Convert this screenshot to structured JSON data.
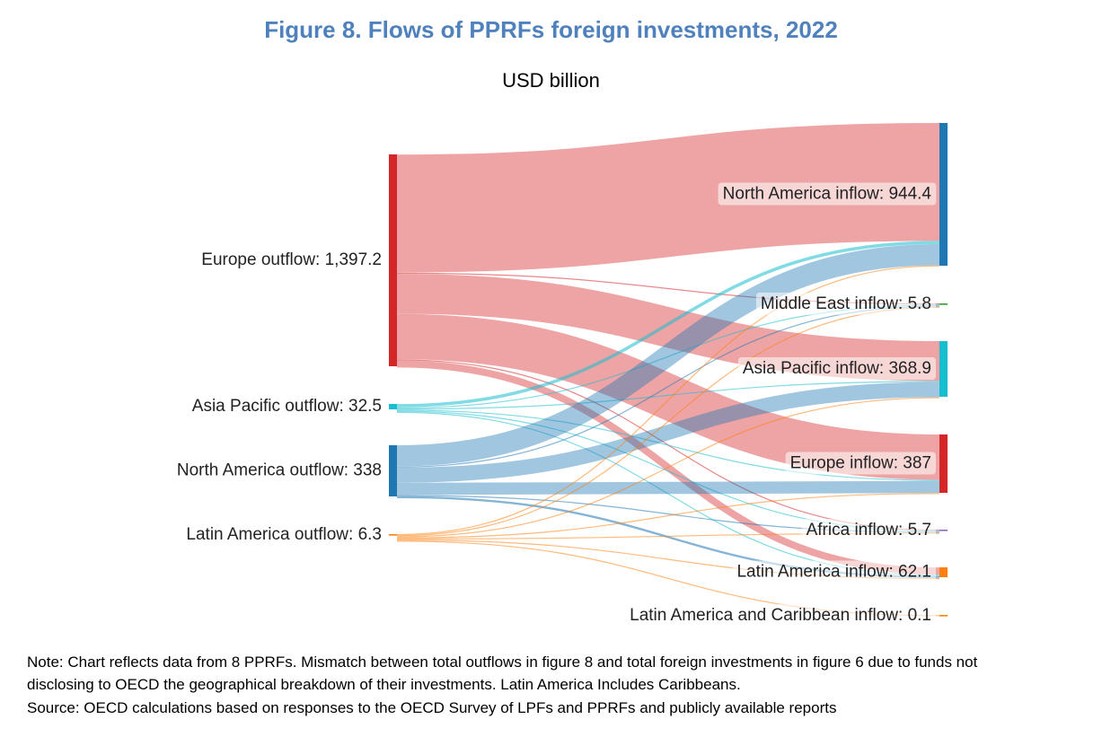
{
  "title": "Figure 8. Flows of PPRFs foreign investments, 2022",
  "subtitle": "USD billion",
  "note_line1": "Note: Chart reflects data from 8 PPRFs. Mismatch between total outflows in figure 8 and total foreign investments in figure 6 due to funds not",
  "note_line2": "disclosing to OECD the geographical breakdown of their investments. Latin America Includes Caribbeans.",
  "source": "Source: OECD calculations based on responses to the OECD Survey of LPFs and PPRFs and publicly available reports",
  "chart_data": {
    "type": "sankey",
    "unit": "USD billion",
    "sources": [
      {
        "id": "EU_out",
        "label": "Europe outflow: 1,397.2",
        "value": 1397.2,
        "color": "#d62728"
      },
      {
        "id": "AP_out",
        "label": "Asia Pacific outflow: 32.5",
        "value": 32.5,
        "color": "#17becf"
      },
      {
        "id": "NA_out",
        "label": "North America outflow: 338",
        "value": 338,
        "color": "#1f77b4"
      },
      {
        "id": "LA_out",
        "label": "Latin America outflow: 6.3",
        "value": 6.3,
        "color": "#ff7f0e"
      }
    ],
    "targets": [
      {
        "id": "NA_in",
        "label": "North America inflow: 944.4",
        "value": 944.4,
        "color": "#1f77b4"
      },
      {
        "id": "ME_in",
        "label": "Middle East inflow: 5.8",
        "value": 5.8,
        "color": "#2ca02c"
      },
      {
        "id": "AP_in",
        "label": "Asia Pacific inflow: 368.9",
        "value": 368.9,
        "color": "#17becf"
      },
      {
        "id": "EU_in",
        "label": "Europe inflow: 387",
        "value": 387,
        "color": "#d62728"
      },
      {
        "id": "AF_in",
        "label": "Africa inflow: 5.7",
        "value": 5.7,
        "color": "#9467bd"
      },
      {
        "id": "LA_in",
        "label": "Latin America inflow: 62.1",
        "value": 62.1,
        "color": "#ff7f0e"
      },
      {
        "id": "LAC_in",
        "label": "Latin America and Caribbean inflow: 0.1",
        "value": 0.1,
        "color": "#ff7f0e"
      }
    ],
    "links": [
      {
        "source": "EU_out",
        "target": "NA_in",
        "value": 780
      },
      {
        "source": "EU_out",
        "target": "ME_in",
        "value": 3
      },
      {
        "source": "EU_out",
        "target": "AP_in",
        "value": 264
      },
      {
        "source": "EU_out",
        "target": "EU_in",
        "value": 300
      },
      {
        "source": "EU_out",
        "target": "AF_in",
        "value": 3
      },
      {
        "source": "EU_out",
        "target": "LA_in",
        "value": 47
      },
      {
        "source": "AP_out",
        "target": "NA_in",
        "value": 21
      },
      {
        "source": "AP_out",
        "target": "ME_in",
        "value": 1.5
      },
      {
        "source": "AP_out",
        "target": "AP_in",
        "value": 3
      },
      {
        "source": "AP_out",
        "target": "EU_in",
        "value": 5
      },
      {
        "source": "AP_out",
        "target": "AF_in",
        "value": 1
      },
      {
        "source": "AP_out",
        "target": "LA_in",
        "value": 1
      },
      {
        "source": "NA_out",
        "target": "NA_in",
        "value": 140
      },
      {
        "source": "NA_out",
        "target": "ME_in",
        "value": 1
      },
      {
        "source": "NA_out",
        "target": "AP_in",
        "value": 100
      },
      {
        "source": "NA_out",
        "target": "EU_in",
        "value": 80
      },
      {
        "source": "NA_out",
        "target": "AF_in",
        "value": 1.5
      },
      {
        "source": "NA_out",
        "target": "LA_in",
        "value": 14
      },
      {
        "source": "LA_out",
        "target": "NA_in",
        "value": 3
      },
      {
        "source": "LA_out",
        "target": "ME_in",
        "value": 0.3
      },
      {
        "source": "LA_out",
        "target": "AP_in",
        "value": 1.5
      },
      {
        "source": "LA_out",
        "target": "EU_in",
        "value": 1
      },
      {
        "source": "LA_out",
        "target": "AF_in",
        "value": 0.2
      },
      {
        "source": "LA_out",
        "target": "LA_in",
        "value": 0.2
      },
      {
        "source": "LA_out",
        "target": "LAC_in",
        "value": 0.1
      }
    ]
  }
}
